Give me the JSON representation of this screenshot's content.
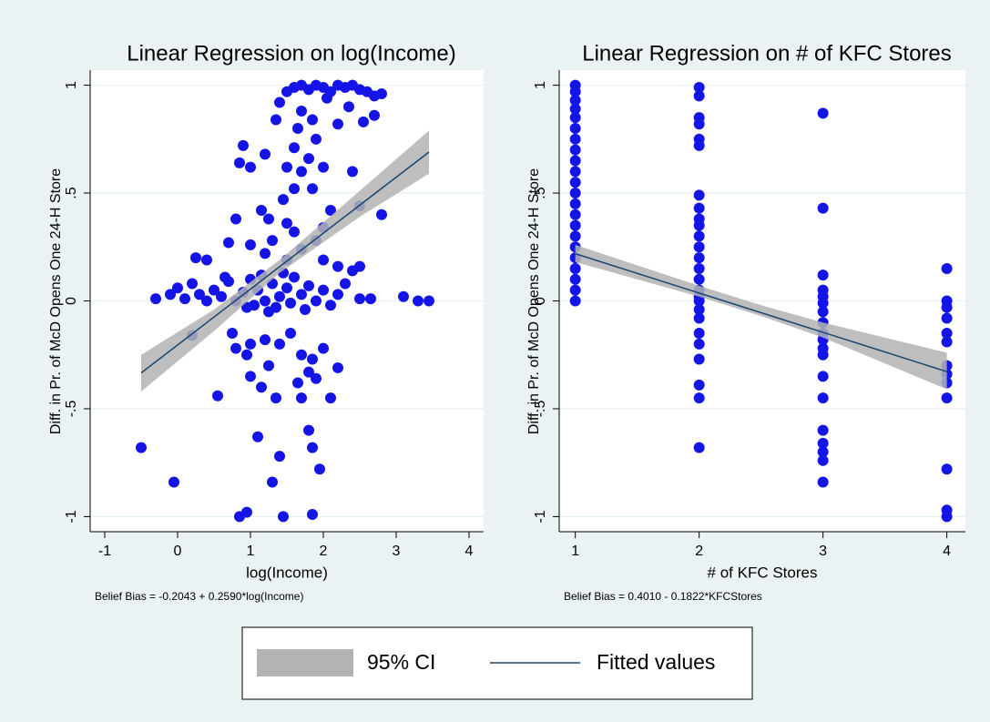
{
  "chart_data": [
    {
      "type": "scatter",
      "title": "Linear Regression on log(Income)",
      "x_label": "log(Income)",
      "y_label": "Diff. in Pr. of McD Opens One 24-H Store",
      "note": "Belief Bias = -0.2043 + 0.2590*log(Income)",
      "xlim": [
        -1.2,
        4.2
      ],
      "ylim": [
        -1.07,
        1.07
      ],
      "xticks": [
        -1,
        0,
        1,
        2,
        3,
        4
      ],
      "yticks": [
        -1,
        {
          "value": -0.5,
          "label": "-.5"
        },
        0,
        {
          "value": 0.5,
          "label": ".5"
        },
        1
      ],
      "grid": true,
      "legend": "bottom",
      "series": [
        {
          "type": "scatter",
          "color": "#1414e6",
          "x": [
            1.6,
            1.7,
            1.8,
            1.9,
            2.0,
            2.1,
            2.2,
            2.3,
            2.4,
            2.5,
            2.6,
            2.7,
            2.8,
            1.4,
            1.5,
            2.05,
            2.35,
            2.55,
            2.7,
            1.7,
            1.35,
            1.65,
            1.85,
            2.2,
            1.9,
            1.6,
            0.9,
            1.0,
            0.85,
            1.2,
            1.5,
            1.7,
            1.8,
            2.0,
            2.4,
            1.6,
            1.85,
            1.45,
            2.1,
            2.5,
            2.8,
            1.15,
            0.8,
            1.25,
            1.5,
            2.0,
            1.9,
            1.3,
            1.0,
            0.7,
            1.6,
            2.0,
            2.4,
            1.5,
            0.4,
            0.25,
            1.2,
            1.7,
            2.2,
            2.5,
            0.95,
            1.15,
            1.45,
            0.65,
            1.25,
            3.1,
            -0.3,
            -0.1,
            0.0,
            0.1,
            0.2,
            0.3,
            0.4,
            0.5,
            0.6,
            0.7,
            0.8,
            0.9,
            1.0,
            1.05,
            1.1,
            1.2,
            1.3,
            1.35,
            1.4,
            1.5,
            1.55,
            1.6,
            1.7,
            1.75,
            1.8,
            1.9,
            2.0,
            2.1,
            2.2,
            2.3,
            2.5,
            2.65,
            3.3,
            3.45,
            0.2,
            0.75,
            0.8,
            1.0,
            1.2,
            1.25,
            0.95,
            1.4,
            1.55,
            1.7,
            1.85,
            2.0,
            1.8,
            1.65,
            1.0,
            1.15,
            1.35,
            1.7,
            1.9,
            2.1,
            2.2,
            0.55,
            1.8,
            1.85,
            1.1,
            1.4,
            1.95,
            1.3,
            -0.05,
            -0.5,
            0.85,
            0.95,
            1.45,
            1.85
          ],
          "values": [
            0.99,
            1.0,
            0.98,
            1.0,
            0.99,
            0.97,
            1.0,
            0.99,
            1.0,
            0.98,
            0.97,
            0.95,
            0.96,
            0.92,
            0.97,
            0.94,
            0.9,
            0.83,
            0.86,
            0.88,
            0.84,
            0.8,
            0.84,
            0.82,
            0.75,
            0.71,
            0.72,
            0.62,
            0.64,
            0.68,
            0.62,
            0.6,
            0.66,
            0.62,
            0.6,
            0.52,
            0.52,
            0.47,
            0.42,
            0.44,
            0.4,
            0.42,
            0.38,
            0.38,
            0.36,
            0.34,
            0.28,
            0.28,
            0.26,
            0.27,
            0.32,
            0.19,
            0.14,
            0.19,
            0.19,
            0.2,
            0.22,
            0.24,
            0.16,
            0.16,
            -0.03,
            0.12,
            0.13,
            0.11,
            -0.05,
            0.02,
            0.01,
            0.03,
            0.06,
            0.01,
            0.08,
            0.03,
            0.0,
            0.05,
            0.02,
            0.09,
            0.0,
            0.04,
            0.1,
            -0.02,
            0.05,
            0.0,
            0.08,
            -0.03,
            0.02,
            0.06,
            -0.01,
            0.11,
            0.03,
            -0.04,
            0.07,
            0.0,
            0.05,
            -0.02,
            0.03,
            0.08,
            0.01,
            0.01,
            0.0,
            0.0,
            -0.16,
            -0.15,
            -0.22,
            -0.2,
            -0.18,
            -0.3,
            -0.25,
            -0.2,
            -0.15,
            -0.25,
            -0.27,
            -0.22,
            -0.33,
            -0.38,
            -0.35,
            -0.4,
            -0.45,
            -0.45,
            -0.36,
            -0.45,
            -0.31,
            -0.44,
            -0.6,
            -0.68,
            -0.63,
            -0.72,
            -0.78,
            -0.84,
            -0.84,
            -0.68,
            -1.0,
            -0.98,
            -1.0,
            -0.99
          ]
        },
        {
          "type": "band",
          "name": "95% CI",
          "color": "#b3b3b3",
          "x": [
            -0.5,
            0.5,
            1.4,
            2.5,
            3.45
          ],
          "lower": [
            -0.42,
            -0.14,
            0.13,
            0.39,
            0.59
          ],
          "upper": [
            -0.25,
            -0.04,
            0.19,
            0.51,
            0.79
          ]
        },
        {
          "type": "line",
          "name": "Fitted values",
          "color": "#1a476f",
          "x": [
            -0.5,
            3.45
          ],
          "values": [
            -0.334,
            0.69
          ]
        }
      ]
    },
    {
      "type": "scatter",
      "title": "Linear Regression on # of KFC Stores",
      "x_label": "# of KFC Stores",
      "y_label": "Diff. in Pr. of McD Opens One 24-H Store",
      "note": "Belief Bias = 0.4010 - 0.1822*KFCStores",
      "xlim": [
        0.87,
        4.15
      ],
      "ylim": [
        -1.07,
        1.07
      ],
      "xticks": [
        1,
        2,
        3,
        4
      ],
      "yticks": [
        -1,
        {
          "value": -0.5,
          "label": "-.5"
        },
        0,
        {
          "value": 0.5,
          "label": ".5"
        },
        1
      ],
      "grid": true,
      "series": [
        {
          "type": "scatter",
          "color": "#1414e6",
          "x": [
            1,
            1,
            1,
            1,
            1,
            1,
            1,
            1,
            1,
            1,
            1,
            1,
            1,
            1,
            1,
            1,
            1,
            1,
            1,
            1,
            1,
            1,
            2,
            2,
            2,
            2,
            2,
            2,
            2,
            2,
            2,
            2,
            2,
            2,
            2,
            2,
            2,
            2,
            2,
            2,
            2,
            2,
            2,
            2,
            2,
            2,
            2,
            2,
            3,
            3,
            3,
            3,
            3,
            3,
            3,
            3,
            3,
            3,
            3,
            3,
            3,
            3,
            3,
            3,
            3,
            3,
            3,
            4,
            4,
            4,
            4,
            4,
            4,
            4,
            4,
            4,
            4,
            4,
            4,
            4
          ],
          "values": [
            1.0,
            0.97,
            0.93,
            0.89,
            0.85,
            0.8,
            0.75,
            0.7,
            0.65,
            0.6,
            0.55,
            0.5,
            0.45,
            0.4,
            0.35,
            0.3,
            0.25,
            0.2,
            0.15,
            0.1,
            0.05,
            0.0,
            0.99,
            0.95,
            0.85,
            0.82,
            0.75,
            0.72,
            0.49,
            0.43,
            0.38,
            0.35,
            0.3,
            0.25,
            0.2,
            0.15,
            0.1,
            0.05,
            0.02,
            0.0,
            -0.04,
            -0.08,
            -0.15,
            -0.2,
            -0.27,
            -0.39,
            -0.45,
            -0.68,
            0.87,
            0.43,
            0.12,
            0.05,
            0.02,
            -0.01,
            -0.05,
            -0.1,
            -0.15,
            -0.18,
            -0.22,
            -0.25,
            -0.35,
            -0.45,
            -0.6,
            -0.66,
            -0.7,
            -0.74,
            -0.84,
            0.15,
            0.0,
            -0.03,
            -0.08,
            -0.15,
            -0.19,
            -0.3,
            -0.34,
            -0.38,
            -0.45,
            -0.78,
            -0.97,
            -1.0
          ]
        },
        {
          "type": "band",
          "color": "#b3b3b3",
          "x": [
            1,
            2,
            2.5,
            3,
            4
          ],
          "lower": [
            0.18,
            0.02,
            -0.07,
            -0.17,
            -0.41
          ],
          "upper": [
            0.26,
            0.07,
            -0.02,
            -0.1,
            -0.24
          ]
        },
        {
          "type": "line",
          "color": "#1a476f",
          "x": [
            1,
            4
          ],
          "values": [
            0.2188,
            -0.3278
          ]
        }
      ]
    }
  ]
}
